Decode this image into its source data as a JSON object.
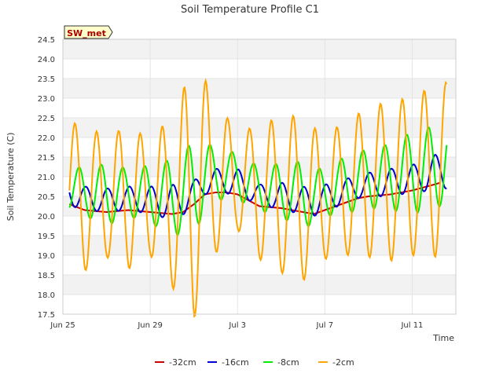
{
  "chart_data": {
    "type": "line",
    "title": "Soil Temperature Profile C1",
    "xlabel": "Time",
    "ylabel": "Soil Temperature (C)",
    "badge": "SW_met",
    "ylim": [
      17.5,
      24.5
    ],
    "yticks": [
      "17.5",
      "18.0",
      "18.5",
      "19.0",
      "19.5",
      "20.0",
      "20.5",
      "21.0",
      "21.5",
      "22.0",
      "22.5",
      "23.0",
      "23.5",
      "24.0",
      "24.5"
    ],
    "x_range_days": [
      0,
      18
    ],
    "xticks": [
      {
        "label": "Jun 25",
        "day": 0
      },
      {
        "label": "Jun 29",
        "day": 4
      },
      {
        "label": "Jul 3",
        "day": 8
      },
      {
        "label": "Jul 7",
        "day": 12
      },
      {
        "label": "Jul 11",
        "day": 16
      }
    ],
    "grid": true,
    "legend_position": "bottom",
    "series": [
      {
        "name": "-32cm",
        "color": "#cc0000",
        "x": [
          0.3,
          1,
          2,
          3,
          4,
          5,
          5.5,
          6,
          6.5,
          7,
          7.5,
          8,
          8.5,
          9,
          10,
          11,
          11.5,
          12,
          12.5,
          13,
          13.5,
          14,
          15,
          16,
          17,
          17.3
        ],
        "y": [
          20.3,
          20.15,
          20.1,
          20.15,
          20.1,
          20.05,
          20.1,
          20.3,
          20.55,
          20.6,
          20.6,
          20.55,
          20.4,
          20.25,
          20.2,
          20.1,
          20.05,
          20.15,
          20.25,
          20.35,
          20.45,
          20.5,
          20.55,
          20.65,
          20.8,
          20.85
        ]
      },
      {
        "name": "-16cm",
        "color": "#0000cc",
        "phase": 0.8,
        "amps": [
          0.35,
          0.3,
          0.3,
          0.3,
          0.35,
          0.45,
          0.3,
          0.3,
          0.35,
          0.25,
          0.35,
          0.35,
          0.35,
          0.3,
          0.3,
          0.35,
          0.35,
          0.45
        ]
      },
      {
        "name": "-8cm",
        "color": "#00ee00",
        "phase": 0.5,
        "amps": [
          0.55,
          0.6,
          0.8,
          0.6,
          0.75,
          0.95,
          1.2,
          0.65,
          0.6,
          0.55,
          0.7,
          0.85,
          0.6,
          0.75,
          0.75,
          0.85,
          1.05,
          1.05
        ]
      },
      {
        "name": "-2cm",
        "color": "#ffa500",
        "phase": 0.3,
        "amps": [
          1.6,
          1.9,
          1.5,
          1.85,
          1.45,
          2.2,
          3.3,
          1.9,
          1.25,
          1.7,
          2.0,
          2.1,
          1.6,
          1.7,
          1.9,
          2.05,
          2.0,
          2.2
        ]
      }
    ]
  }
}
